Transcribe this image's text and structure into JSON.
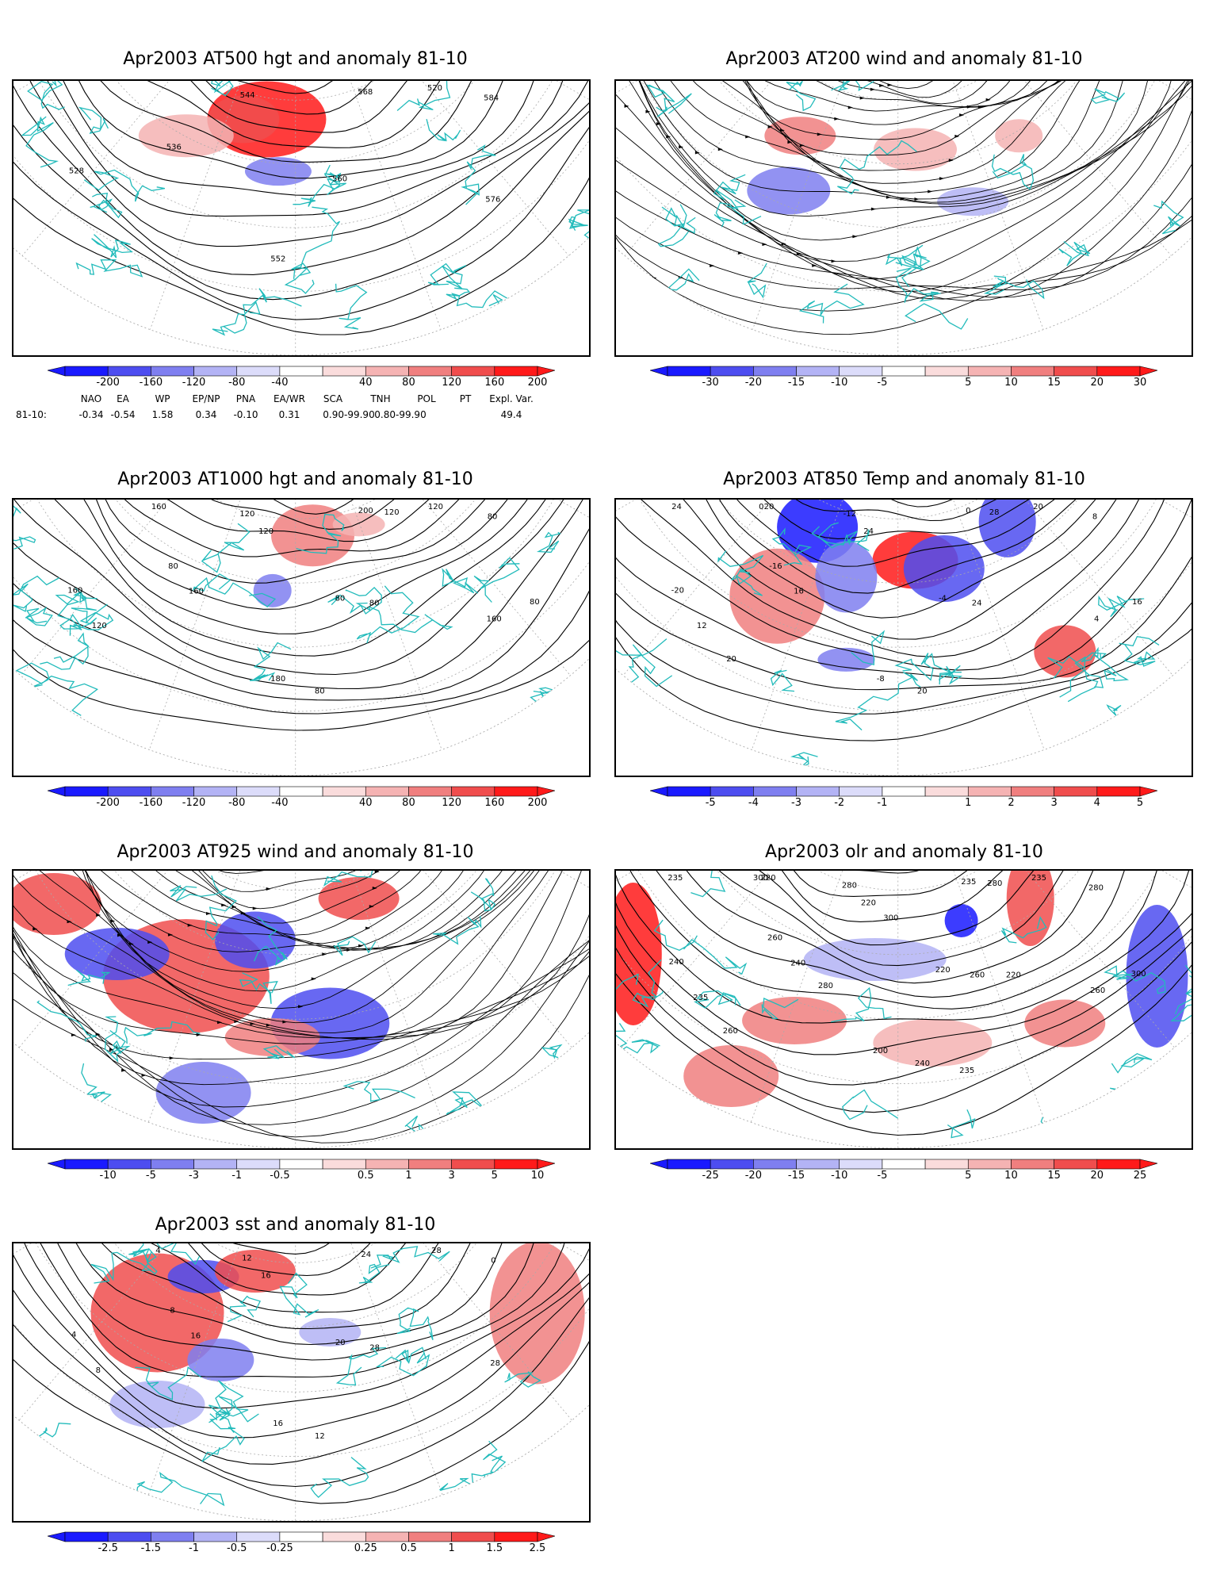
{
  "panels": [
    {
      "id": "p500",
      "title": "Apr2003 AT500 hgt and anomaly 81-10",
      "kind": "contour",
      "labels": [
        "520",
        "528",
        "536",
        "544",
        "552",
        "560",
        "568",
        "576",
        "584"
      ],
      "colorbar": [
        "-200",
        "-160",
        "-120",
        "-80",
        "-40",
        "40",
        "80",
        "120",
        "160",
        "200"
      ]
    },
    {
      "id": "p200",
      "title": "Apr2003 AT200 wind and anomaly 81-10",
      "kind": "stream",
      "labels": [],
      "colorbar": [
        "-30",
        "-20",
        "-15",
        "-10",
        "-5",
        "5",
        "10",
        "15",
        "20",
        "30"
      ]
    },
    {
      "id": "p1000",
      "title": "Apr2003 AT1000 hgt and anomaly 81-10",
      "kind": "contour",
      "labels": [
        "120",
        "160",
        "80",
        "120",
        "180",
        "80",
        "200",
        "160",
        "80",
        "160",
        "120",
        "160",
        "120",
        "80",
        "80",
        "120",
        "80"
      ],
      "colorbar": [
        "-200",
        "-160",
        "-120",
        "-80",
        "-40",
        "40",
        "80",
        "120",
        "160",
        "200"
      ]
    },
    {
      "id": "p850",
      "title": "Apr2003 AT850 Temp and anomaly 81-10",
      "kind": "contour",
      "labels": [
        "20",
        "-20",
        "-16",
        "-12",
        "-8",
        "-4",
        "0",
        "4",
        "8",
        "0",
        "12",
        "16",
        "24",
        "20",
        "24",
        "28",
        "16",
        "24",
        "20",
        "20"
      ],
      "colorbar": [
        "-5",
        "-4",
        "-3",
        "-2",
        "-1",
        "1",
        "2",
        "3",
        "4",
        "5"
      ]
    },
    {
      "id": "p925",
      "title": "Apr2003 AT925 wind and anomaly 81-10",
      "kind": "stream",
      "labels": [],
      "colorbar": [
        "-10",
        "-5",
        "-3",
        "-1",
        "-0.5",
        "0.5",
        "1",
        "3",
        "5",
        "10"
      ]
    },
    {
      "id": "polr",
      "title": "Apr2003 olr and anomaly 81-10",
      "kind": "contour",
      "labels": [
        "235",
        "240",
        "260",
        "280",
        "200",
        "220",
        "235",
        "260",
        "280",
        "300",
        "235",
        "240",
        "220",
        "240",
        "260",
        "280",
        "300",
        "235",
        "220",
        "260",
        "280",
        "300",
        "235",
        "220"
      ],
      "colorbar": [
        "-25",
        "-20",
        "-15",
        "-10",
        "-5",
        "5",
        "10",
        "15",
        "20",
        "25"
      ]
    },
    {
      "id": "psst",
      "title": "Apr2003 sst and anomaly 81-10",
      "kind": "contour",
      "labels": [
        "28",
        "4",
        "8",
        "12",
        "16",
        "20",
        "24",
        "28",
        "0",
        "4",
        "8",
        "16",
        "16",
        "12",
        "28"
      ],
      "colorbar": [
        "-2.5",
        "-1.5",
        "-1",
        "-0.5",
        "-0.25",
        "0.25",
        "0.5",
        "1",
        "1.5",
        "2.5"
      ]
    }
  ],
  "teleconnection": {
    "headers": [
      "NAO",
      "EA",
      "WP",
      "EP/NP",
      "PNA",
      "EA/WR",
      "SCA",
      "TNH",
      "POL",
      "PT",
      "Expl. Var."
    ],
    "row_label": "81-10:",
    "values": [
      "-0.34",
      "-0.54",
      "1.58",
      "0.34",
      "-0.10",
      "0.31",
      "0.90-99.90",
      "0.80-99.90",
      "",
      "",
      "49.4"
    ]
  },
  "colors": {
    "coast": "#22bbbb",
    "contour": "#000000",
    "grid": "#aaaaaa",
    "blue_scale": [
      "#1a1aff",
      "#4d4df0",
      "#7f7ff0",
      "#b3b3f5",
      "#dcdcfa"
    ],
    "red_scale": [
      "#fadcdc",
      "#f5b3b3",
      "#f07f7f",
      "#f04d4d",
      "#ff1a1a"
    ]
  }
}
